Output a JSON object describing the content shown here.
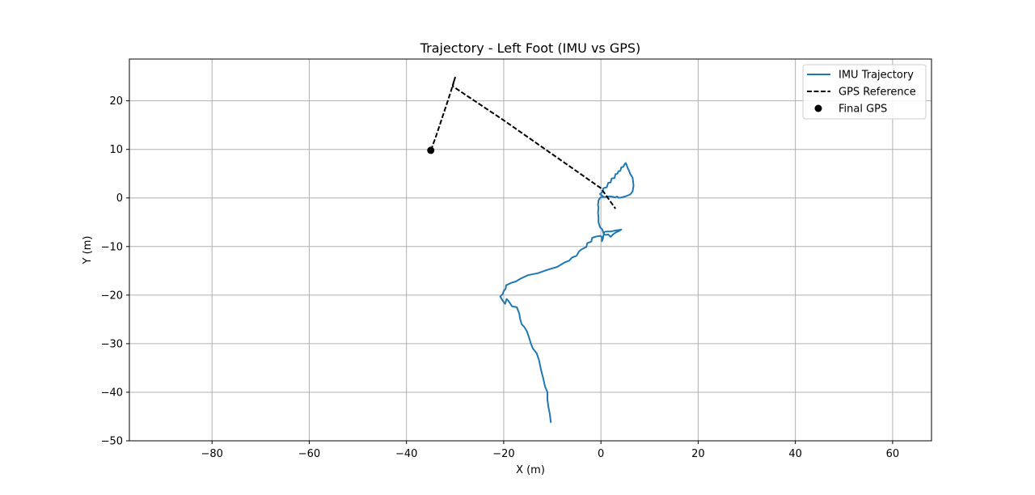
{
  "chart_data": {
    "type": "line",
    "title": "Trajectory - Left Foot (IMU vs GPS)",
    "xlabel": "X (m)",
    "ylabel": "Y (m)",
    "xlim": [
      -97,
      68
    ],
    "ylim": [
      -50,
      28.6
    ],
    "xticks": [
      -80,
      -60,
      -40,
      -20,
      0,
      20,
      40,
      60
    ],
    "yticks": [
      -50,
      -40,
      -30,
      -20,
      -10,
      0,
      10,
      20
    ],
    "grid": true,
    "legend_position": "top-right",
    "series": [
      {
        "name": "IMU Trajectory",
        "color": "#1f77b4",
        "style": "solid",
        "points": [
          [
            -10.3,
            -46.3
          ],
          [
            -10.5,
            -44.5
          ],
          [
            -10.8,
            -43.0
          ],
          [
            -11.0,
            -41.5
          ],
          [
            -11.0,
            -40.0
          ],
          [
            -11.5,
            -38.8
          ],
          [
            -11.9,
            -37.0
          ],
          [
            -12.3,
            -35.5
          ],
          [
            -12.7,
            -33.5
          ],
          [
            -13.2,
            -32.0
          ],
          [
            -14.0,
            -31.0
          ],
          [
            -14.4,
            -30.0
          ],
          [
            -14.7,
            -29.0
          ],
          [
            -15.2,
            -27.5
          ],
          [
            -15.8,
            -26.5
          ],
          [
            -16.3,
            -26.0
          ],
          [
            -16.6,
            -25.0
          ],
          [
            -16.8,
            -23.8
          ],
          [
            -17.3,
            -22.5
          ],
          [
            -18.3,
            -22.3
          ],
          [
            -19.0,
            -21.2
          ],
          [
            -19.4,
            -20.8
          ],
          [
            -19.7,
            -21.8
          ],
          [
            -20.3,
            -21.0
          ],
          [
            -20.7,
            -20.3
          ],
          [
            -20.2,
            -19.8
          ],
          [
            -20.0,
            -19.2
          ],
          [
            -19.6,
            -18.7
          ],
          [
            -19.5,
            -18.0
          ],
          [
            -18.5,
            -17.5
          ],
          [
            -17.5,
            -17.2
          ],
          [
            -16.5,
            -16.6
          ],
          [
            -15.0,
            -15.9
          ],
          [
            -13.0,
            -15.5
          ],
          [
            -11.0,
            -14.8
          ],
          [
            -9.0,
            -14.2
          ],
          [
            -7.5,
            -13.3
          ],
          [
            -6.5,
            -12.9
          ],
          [
            -6.0,
            -12.3
          ],
          [
            -5.0,
            -11.9
          ],
          [
            -4.5,
            -11.0
          ],
          [
            -4.0,
            -10.6
          ],
          [
            -3.0,
            -10.1
          ],
          [
            -2.8,
            -9.3
          ],
          [
            -2.0,
            -9.0
          ],
          [
            -1.8,
            -8.2
          ],
          [
            -0.8,
            -7.9
          ],
          [
            -0.2,
            -7.8
          ],
          [
            0.2,
            -8.0
          ],
          [
            0.2,
            -8.9
          ],
          [
            0.4,
            -8.4
          ],
          [
            0.5,
            -7.8
          ],
          [
            0.7,
            -7.0
          ],
          [
            1.2,
            -6.9
          ],
          [
            2.0,
            -6.9
          ],
          [
            3.0,
            -6.7
          ],
          [
            4.2,
            -6.5
          ],
          [
            3.5,
            -6.9
          ],
          [
            2.9,
            -7.2
          ],
          [
            2.5,
            -7.5
          ],
          [
            2.0,
            -8.0
          ],
          [
            1.5,
            -7.5
          ],
          [
            1.0,
            -7.6
          ],
          [
            0.6,
            -7.5
          ],
          [
            0.3,
            -6.5
          ],
          [
            -0.2,
            -6.0
          ],
          [
            -0.5,
            -5.0
          ],
          [
            -0.5,
            -4.0
          ],
          [
            -0.6,
            -3.0
          ],
          [
            -0.5,
            -2.0
          ],
          [
            -0.6,
            -1.5
          ],
          [
            -0.5,
            -0.5
          ],
          [
            -0.2,
            0.0
          ],
          [
            0.2,
            0.2
          ],
          [
            1.0,
            0.2
          ],
          [
            1.5,
            0.3
          ],
          [
            2.0,
            0.3
          ],
          [
            2.5,
            0.2
          ],
          [
            3.0,
            0.1
          ],
          [
            3.3,
            0.3
          ],
          [
            3.7,
            0.0
          ],
          [
            4.2,
            0.1
          ],
          [
            5.0,
            0.3
          ],
          [
            6.0,
            0.7
          ],
          [
            6.5,
            1.3
          ],
          [
            6.7,
            2.5
          ],
          [
            6.6,
            3.5
          ],
          [
            6.5,
            4.2
          ],
          [
            6.0,
            5.0
          ],
          [
            5.8,
            5.6
          ],
          [
            5.5,
            6.2
          ],
          [
            5.3,
            6.8
          ],
          [
            5.1,
            7.2
          ],
          [
            4.8,
            6.8
          ],
          [
            4.6,
            6.4
          ],
          [
            4.2,
            6.3
          ],
          [
            4.0,
            5.6
          ],
          [
            3.6,
            5.5
          ],
          [
            3.4,
            5.0
          ],
          [
            3.0,
            4.9
          ],
          [
            2.8,
            4.1
          ],
          [
            2.2,
            4.0
          ],
          [
            2.0,
            3.2
          ],
          [
            1.5,
            3.1
          ],
          [
            1.2,
            2.2
          ],
          [
            0.5,
            2.0
          ],
          [
            0.3,
            1.2
          ],
          [
            -0.2,
            0.8
          ],
          [
            0.2,
            0.5
          ],
          [
            0.5,
            0.3
          ]
        ]
      },
      {
        "name": "GPS Reference",
        "color": "#000000",
        "style": "dashed",
        "points": [
          [
            -35.0,
            9.8
          ],
          [
            -34.0,
            12.5
          ],
          [
            -33.0,
            15.5
          ],
          [
            -32.0,
            18.5
          ],
          [
            -31.0,
            21.5
          ],
          [
            -30.0,
            24.8
          ],
          [
            -30.5,
            23.0
          ],
          [
            -20.0,
            16.0
          ],
          [
            -10.0,
            9.0
          ],
          [
            0.0,
            2.0
          ],
          [
            3.0,
            -2.2
          ]
        ]
      },
      {
        "name": "Final GPS",
        "color": "#000000",
        "style": "marker",
        "points": [
          [
            -35.0,
            9.8
          ]
        ]
      }
    ]
  }
}
